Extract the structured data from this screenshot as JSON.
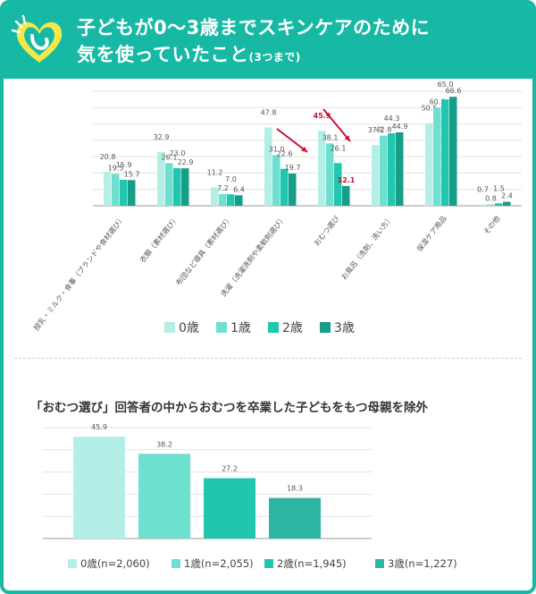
{
  "header": {
    "title_line1": "子どもが0〜3歳までスキンケアのために",
    "title_line2": "気を使っていたこと",
    "title_note": "(3つまで)"
  },
  "chart_data": [
    {
      "type": "bar",
      "categories": [
        "授乳・ミルク・食事（ブランドや食材選び）",
        "衣類（素材選び）",
        "布団など寝具（素材選び）",
        "洗濯（洗濯洗剤や柔軟剤選び）",
        "おむつ選び",
        "お風呂（洗剤、洗い方）",
        "保湿ケア用品",
        "その他"
      ],
      "series": [
        {
          "name": "0歳",
          "color": "#b3efe7",
          "values": [
            20.8,
            32.9,
            11.2,
            47.8,
            45.9,
            37.1,
            50.5,
            0.7
          ]
        },
        {
          "name": "1歳",
          "color": "#6ee0d0",
          "values": [
            19.5,
            26.1,
            7.2,
            31.0,
            38.1,
            42.8,
            60.0,
            0.8
          ]
        },
        {
          "name": "2歳",
          "color": "#22c6ae",
          "values": [
            15.9,
            23.0,
            7.0,
            22.6,
            26.1,
            44.3,
            65.0,
            1.5
          ]
        },
        {
          "name": "3歳",
          "color": "#179e8a",
          "values": [
            15.7,
            22.9,
            6.4,
            19.7,
            12.1,
            44.9,
            66.6,
            2.4
          ]
        }
      ],
      "highlight": {
        "category_index": 4,
        "series_indices": [
          0,
          3
        ],
        "color": "#cc1133"
      },
      "ylim": [
        0,
        70
      ],
      "grid": true,
      "legend": "bottom-center"
    },
    {
      "type": "bar",
      "title": "「おむつ選び」回答者の中からおむつを卒業した子どもをもつ母親を除外",
      "categories": [
        "0歳(n=2,060)",
        "1歳(n=2,055)",
        "2歳(n=1,945)",
        "3歳(n=1,227)"
      ],
      "values": [
        45.9,
        38.2,
        27.2,
        18.3
      ],
      "colors": [
        "#b3efe7",
        "#6ee0d0",
        "#22c6ae",
        "#2db5a3"
      ],
      "ylim": [
        0,
        50
      ],
      "grid": true,
      "legend": "bottom-center"
    }
  ]
}
